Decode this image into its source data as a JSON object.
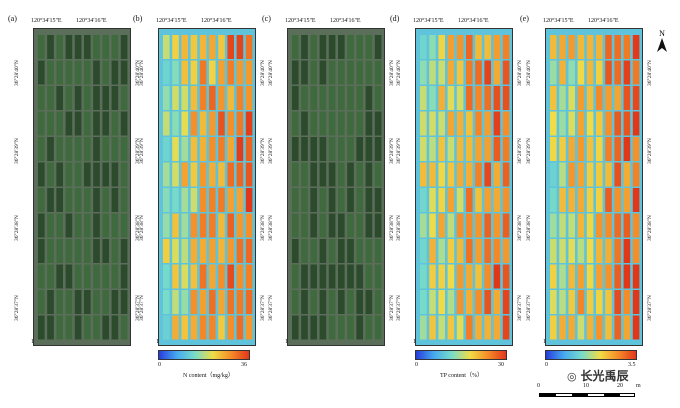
{
  "panels": [
    {
      "label": "(a)",
      "type": "rgb"
    },
    {
      "label": "(b)",
      "type": "heat"
    },
    {
      "label": "(c)",
      "type": "rgb"
    },
    {
      "label": "(d)",
      "type": "heat"
    },
    {
      "label": "(e)",
      "type": "heat"
    }
  ],
  "lon_labels": [
    "120°34'15\"E",
    "120°34'16\"E"
  ],
  "lat_labels": [
    "36°28'40\"N",
    "36°28'39\"N",
    "36°28'38\"N",
    "36°28'37\"N"
  ],
  "colorbars": [
    {
      "min": "0",
      "max": "36",
      "title": "N content（mg/kg）"
    },
    {
      "min": "0",
      "max": "30",
      "title": "TP content（%）"
    },
    {
      "min": "0",
      "max": "3.5",
      "title": ""
    }
  ],
  "north": "N",
  "scale": {
    "ticks": [
      "0",
      "10",
      "20"
    ],
    "unit": "m"
  },
  "watermark": "长光禹辰",
  "colors": {
    "veg_dark": "#2c4a2c",
    "veg_light": "#3f6a3d",
    "heat_low": "#1f3fd9",
    "heat_mid": "#f4d23a",
    "heat_high": "#e2401c"
  }
}
